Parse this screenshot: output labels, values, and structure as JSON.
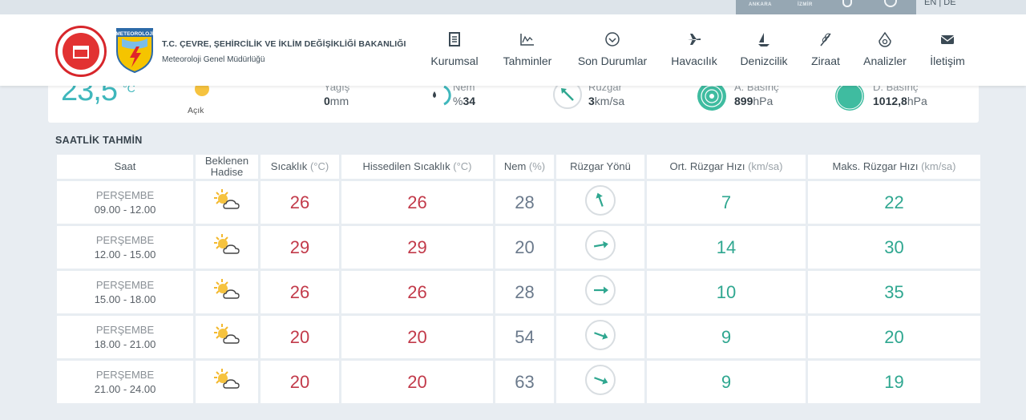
{
  "top_bar": {
    "cities": [
      "ANKARA",
      "İZMİR"
    ],
    "lang": "EN | DE"
  },
  "brand": {
    "title": "T.C. ÇEVRE, ŞEHİRCİLİK VE İKLİM DEĞİŞİKLİĞİ BAKANLIĞI",
    "subtitle": "Meteoroloji Genel Müdürlüğü",
    "logo_text": "METEOROLOJİ"
  },
  "nav": [
    {
      "label": "Kurumsal",
      "icon": "document-icon"
    },
    {
      "label": "Tahminler",
      "icon": "chart-icon"
    },
    {
      "label": "Son Durumlar",
      "icon": "check-circle-icon"
    },
    {
      "label": "Havacılık",
      "icon": "airplane-icon"
    },
    {
      "label": "Denizcilik",
      "icon": "sailboat-icon"
    },
    {
      "label": "Ziraat",
      "icon": "wheat-icon"
    },
    {
      "label": "Analizler",
      "icon": "analysis-icon"
    },
    {
      "label": "İletişim",
      "icon": "envelope-icon"
    }
  ],
  "current": {
    "temp": "23,5",
    "unit": "°C",
    "condition": "Açık",
    "rain_label": "Yağış",
    "rain_value": "0",
    "rain_unit": "mm",
    "hum_label": "Nem",
    "hum_prefix": "%",
    "hum_value": "34",
    "wind_label": "Rüzgar",
    "wind_value": "3",
    "wind_unit": "km/sa",
    "press_a_label": "A. Basınç",
    "press_a_value": "899",
    "press_a_unit": "hPa",
    "press_d_label": "D. Basınç",
    "press_d_value": "1012,8",
    "press_d_unit": "hPa"
  },
  "hourly": {
    "title": "SAATLİK TAHMİN",
    "headers": {
      "saat": "Saat",
      "hadise": "Beklenen Hadise",
      "sicaklik": "Sıcaklık",
      "sicaklik_unit": "(°C)",
      "hissedilen": "Hissedilen Sıcaklık",
      "hissedilen_unit": "(°C)",
      "nem": "Nem",
      "nem_unit": "(%)",
      "yon": "Rüzgar Yönü",
      "ort": "Ort. Rüzgar Hızı",
      "ort_unit": "(km/sa)",
      "maks": "Maks. Rüzgar Hızı",
      "maks_unit": "(km/sa)"
    },
    "rows": [
      {
        "day": "PERŞEMBE",
        "time": "09.00 - 12.00",
        "icon": "sun-cloud-icon",
        "temp": "26",
        "feels": "26",
        "hum": "28",
        "wind_dir_deg": 340,
        "avg": "7",
        "max": "22"
      },
      {
        "day": "PERŞEMBE",
        "time": "12.00 - 15.00",
        "icon": "sun-cloud-icon",
        "temp": "29",
        "feels": "29",
        "hum": "20",
        "wind_dir_deg": 80,
        "avg": "14",
        "max": "30"
      },
      {
        "day": "PERŞEMBE",
        "time": "15.00 - 18.00",
        "icon": "sun-cloud-icon",
        "temp": "26",
        "feels": "26",
        "hum": "28",
        "wind_dir_deg": 90,
        "avg": "10",
        "max": "35"
      },
      {
        "day": "PERŞEMBE",
        "time": "18.00 - 21.00",
        "icon": "sun-cloud-icon",
        "temp": "20",
        "feels": "20",
        "hum": "54",
        "wind_dir_deg": 110,
        "avg": "9",
        "max": "20"
      },
      {
        "day": "PERŞEMBE",
        "time": "21.00 - 24.00",
        "icon": "sun-cloud-icon",
        "temp": "20",
        "feels": "20",
        "hum": "63",
        "wind_dir_deg": 110,
        "avg": "9",
        "max": "19"
      }
    ]
  },
  "colors": {
    "teal": "#3fb7bc",
    "temp_red": "#c23a4a",
    "wind_green": "#2fa790"
  }
}
